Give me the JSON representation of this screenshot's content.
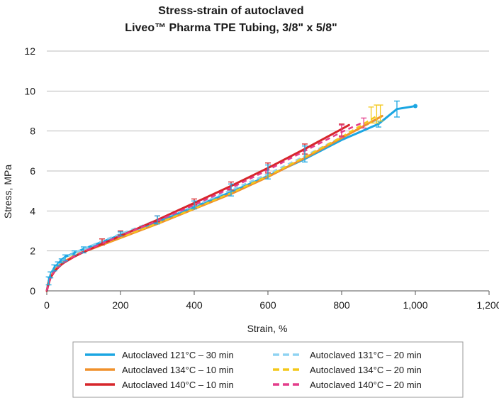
{
  "chart_data": {
    "type": "line",
    "title_line1": "Stress-strain of autoclaved",
    "title_line2": "Liveo™ Pharma TPE Tubing, 3/8\" x 5/8\"",
    "xlabel": "Strain, %",
    "ylabel": "Stress, MPa",
    "xlim": [
      0,
      1200
    ],
    "ylim": [
      0,
      12
    ],
    "xticks": [
      0,
      200,
      400,
      600,
      800,
      1000,
      1200
    ],
    "xtick_labels": [
      "0",
      "200",
      "400",
      "600",
      "800",
      "1,000",
      "1,200"
    ],
    "yticks": [
      0,
      2,
      4,
      6,
      8,
      10,
      12
    ],
    "ytick_labels": [
      "0",
      "2",
      "4",
      "6",
      "8",
      "10",
      "12"
    ],
    "grid": "horizontal",
    "legend_position": "bottom",
    "series": [
      {
        "name": "Autoclaved 121°C – 30 min",
        "color": "#1ba6e2",
        "dash": "solid",
        "x": [
          0,
          5,
          10,
          20,
          30,
          40,
          50,
          75,
          100,
          150,
          200,
          300,
          400,
          500,
          600,
          700,
          800,
          900,
          950,
          1000
        ],
        "y": [
          0,
          0.5,
          0.8,
          1.15,
          1.35,
          1.55,
          1.7,
          1.9,
          2.1,
          2.45,
          2.8,
          3.45,
          4.2,
          4.95,
          5.75,
          6.6,
          7.55,
          8.35,
          9.1,
          9.25
        ]
      },
      {
        "name": "Autoclaved 131°C – 20 min",
        "color": "#8fd3f2",
        "dash": "dashed",
        "x": [
          0,
          5,
          10,
          20,
          30,
          40,
          50,
          75,
          100,
          150,
          200,
          300,
          400,
          500,
          600,
          700,
          800,
          900
        ],
        "y": [
          0,
          0.45,
          0.75,
          1.1,
          1.3,
          1.5,
          1.65,
          1.9,
          2.1,
          2.5,
          2.85,
          3.55,
          4.25,
          5.05,
          5.85,
          6.75,
          7.7,
          8.6
        ]
      },
      {
        "name": "Autoclaved 134°C – 10 min",
        "color": "#f0912b",
        "dash": "solid",
        "x": [
          0,
          5,
          10,
          20,
          30,
          40,
          50,
          75,
          100,
          150,
          200,
          300,
          400,
          500,
          600,
          700,
          800,
          910
        ],
        "y": [
          0,
          0.4,
          0.7,
          1.0,
          1.2,
          1.35,
          1.5,
          1.75,
          1.95,
          2.3,
          2.65,
          3.35,
          4.1,
          4.85,
          5.7,
          6.65,
          7.65,
          8.75
        ]
      },
      {
        "name": "Autoclaved 134°C – 20 min",
        "color": "#f4c81a",
        "dash": "dashed",
        "x": [
          0,
          5,
          10,
          20,
          30,
          40,
          50,
          75,
          100,
          150,
          200,
          300,
          400,
          500,
          600,
          700,
          800,
          900
        ],
        "y": [
          0,
          0.42,
          0.72,
          1.02,
          1.22,
          1.38,
          1.52,
          1.78,
          1.98,
          2.33,
          2.68,
          3.38,
          4.12,
          4.9,
          5.75,
          6.7,
          7.7,
          8.8
        ]
      },
      {
        "name": "Autoclaved 140°C – 10 min",
        "color": "#d7262b",
        "dash": "solid",
        "x": [
          0,
          5,
          10,
          20,
          30,
          40,
          50,
          75,
          100,
          150,
          200,
          300,
          400,
          500,
          600,
          700,
          800,
          820
        ],
        "y": [
          0,
          0.35,
          0.65,
          0.95,
          1.15,
          1.32,
          1.45,
          1.72,
          1.95,
          2.35,
          2.75,
          3.55,
          4.4,
          5.25,
          6.15,
          7.1,
          8.1,
          8.3
        ]
      },
      {
        "name": "Autoclaved 140°C – 20 min",
        "color": "#e43d8b",
        "dash": "dashed",
        "x": [
          0,
          5,
          10,
          20,
          30,
          40,
          50,
          75,
          100,
          150,
          200,
          300,
          400,
          500,
          600,
          700,
          800,
          860
        ],
        "y": [
          0,
          0.38,
          0.68,
          0.98,
          1.18,
          1.35,
          1.48,
          1.74,
          1.97,
          2.37,
          2.75,
          3.5,
          4.3,
          5.15,
          6.05,
          7.0,
          7.95,
          8.45
        ]
      }
    ],
    "error_bars": [
      {
        "color": "#1ba6e2",
        "points": [
          [
            900,
            8.35,
            0.15
          ],
          [
            950,
            9.1,
            0.4
          ]
        ]
      },
      {
        "color": "#f4c81a",
        "points": [
          [
            880,
            8.8,
            0.4
          ],
          [
            895,
            8.85,
            0.45
          ],
          [
            905,
            8.9,
            0.4
          ]
        ]
      },
      {
        "color": "#d7262b",
        "points": [
          [
            800,
            8.05,
            0.3
          ],
          [
            700,
            7.1,
            0.25
          ],
          [
            600,
            6.15,
            0.25
          ],
          [
            500,
            5.25,
            0.2
          ],
          [
            400,
            4.45,
            0.15
          ],
          [
            300,
            3.6,
            0.15
          ],
          [
            200,
            2.9,
            0.1
          ],
          [
            150,
            2.45,
            0.15
          ]
        ]
      },
      {
        "color": "#e43d8b",
        "points": [
          [
            860,
            8.4,
            0.25
          ],
          [
            800,
            8.0,
            0.3
          ]
        ]
      },
      {
        "color": "#1ba6e2",
        "points": [
          [
            700,
            6.85,
            0.4
          ],
          [
            600,
            5.95,
            0.35
          ],
          [
            500,
            5.05,
            0.3
          ],
          [
            400,
            4.3,
            0.2
          ],
          [
            300,
            3.55,
            0.2
          ],
          [
            200,
            2.85,
            0.1
          ],
          [
            100,
            2.05,
            0.15
          ],
          [
            75,
            1.9,
            0.1
          ],
          [
            50,
            1.65,
            0.15
          ],
          [
            40,
            1.5,
            0.1
          ],
          [
            30,
            1.35,
            0.1
          ],
          [
            20,
            1.15,
            0.15
          ],
          [
            10,
            0.8,
            0.15
          ],
          [
            5,
            0.5,
            0.2
          ]
        ]
      }
    ]
  }
}
